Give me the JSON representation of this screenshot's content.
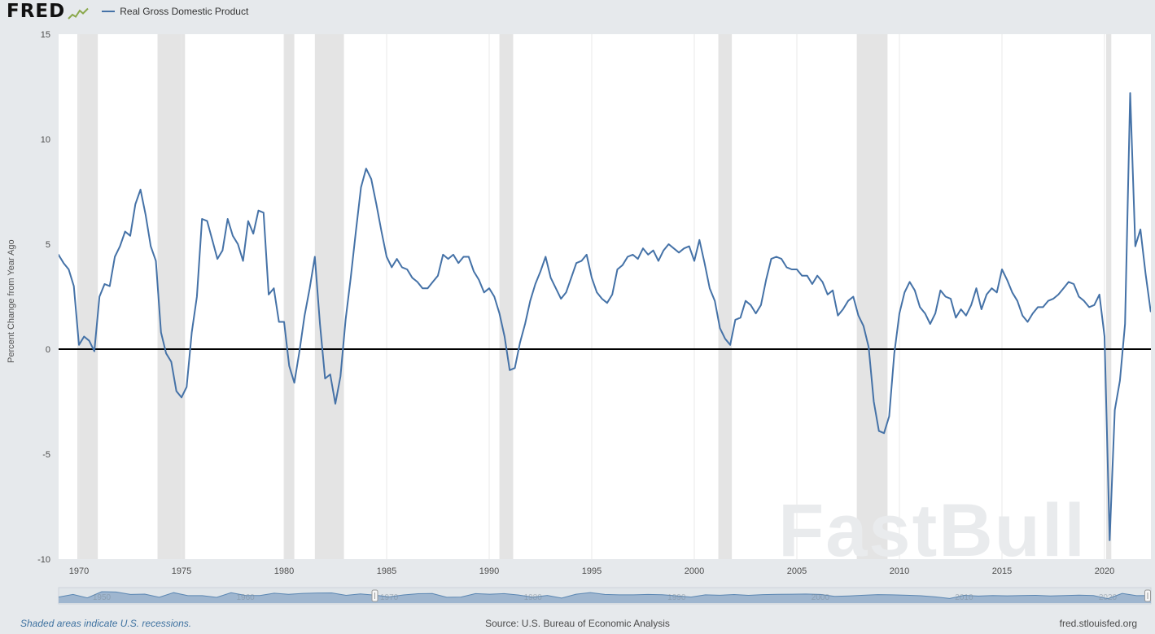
{
  "header": {
    "logo": "FRED",
    "legend": {
      "series_label": "Real Gross Domestic Product",
      "series_color": "#4572a7"
    }
  },
  "chart_data": {
    "type": "line",
    "title": "Real Gross Domestic Product",
    "ylabel": "Percent Change from Year Ago",
    "ylim": [
      -10,
      15
    ],
    "yticks": [
      15,
      10,
      5,
      0,
      -5,
      -10
    ],
    "xticks": [
      1970,
      1975,
      1980,
      1985,
      1990,
      1995,
      2000,
      2005,
      2010,
      2015,
      2020
    ],
    "x_start": 1969.0,
    "x_step": 0.25,
    "line_color": "#4572a7",
    "zero_line_color": "#000000",
    "recession_band_color": "#e4e4e4",
    "grid_color": "#e9e9e9",
    "recession_bands": [
      [
        1969.92,
        1970.92
      ],
      [
        1973.83,
        1975.17
      ],
      [
        1980.0,
        1980.5
      ],
      [
        1981.5,
        1982.92
      ],
      [
        1990.5,
        1991.17
      ],
      [
        2001.17,
        2001.83
      ],
      [
        2007.92,
        2009.42
      ],
      [
        2020.08,
        2020.33
      ]
    ],
    "values": [
      4.5,
      4.1,
      3.8,
      3.0,
      0.2,
      0.6,
      0.4,
      -0.1,
      2.5,
      3.1,
      3.0,
      4.4,
      4.9,
      5.6,
      5.4,
      6.9,
      7.6,
      6.4,
      4.9,
      4.2,
      0.8,
      -0.2,
      -0.6,
      -2.0,
      -2.3,
      -1.8,
      0.8,
      2.5,
      6.2,
      6.1,
      5.2,
      4.3,
      4.7,
      6.2,
      5.4,
      5.0,
      4.2,
      6.1,
      5.5,
      6.6,
      6.5,
      2.6,
      2.9,
      1.3,
      1.3,
      -0.8,
      -1.6,
      -0.1,
      1.6,
      2.9,
      4.4,
      1.2,
      -1.4,
      -1.2,
      -2.6,
      -1.3,
      1.4,
      3.4,
      5.6,
      7.7,
      8.6,
      8.1,
      6.9,
      5.6,
      4.4,
      3.9,
      4.3,
      3.9,
      3.8,
      3.4,
      3.2,
      2.9,
      2.9,
      3.2,
      3.5,
      4.5,
      4.3,
      4.5,
      4.1,
      4.4,
      4.4,
      3.7,
      3.3,
      2.7,
      2.9,
      2.5,
      1.7,
      0.6,
      -1.0,
      -0.9,
      0.3,
      1.2,
      2.3,
      3.1,
      3.7,
      4.4,
      3.4,
      2.9,
      2.4,
      2.7,
      3.4,
      4.1,
      4.2,
      4.5,
      3.4,
      2.7,
      2.4,
      2.2,
      2.6,
      3.8,
      4.0,
      4.4,
      4.5,
      4.3,
      4.8,
      4.5,
      4.7,
      4.2,
      4.7,
      5.0,
      4.8,
      4.6,
      4.8,
      4.9,
      4.2,
      5.2,
      4.1,
      2.9,
      2.3,
      1.0,
      0.5,
      0.2,
      1.4,
      1.5,
      2.3,
      2.1,
      1.7,
      2.1,
      3.3,
      4.3,
      4.4,
      4.3,
      3.9,
      3.8,
      3.8,
      3.5,
      3.5,
      3.1,
      3.5,
      3.2,
      2.6,
      2.8,
      1.6,
      1.9,
      2.3,
      2.5,
      1.6,
      1.1,
      0.1,
      -2.5,
      -3.9,
      -4.0,
      -3.2,
      -0.2,
      1.7,
      2.7,
      3.2,
      2.8,
      2.0,
      1.7,
      1.2,
      1.7,
      2.8,
      2.5,
      2.4,
      1.5,
      1.9,
      1.6,
      2.1,
      2.9,
      1.9,
      2.6,
      2.9,
      2.7,
      3.8,
      3.3,
      2.7,
      2.3,
      1.6,
      1.3,
      1.7,
      2.0,
      2.0,
      2.3,
      2.4,
      2.6,
      2.9,
      3.2,
      3.1,
      2.5,
      2.3,
      2.0,
      2.1,
      2.6,
      0.6,
      -9.1,
      -2.9,
      -1.5,
      1.2,
      12.2,
      4.9,
      5.7,
      3.6,
      1.8
    ]
  },
  "navigator": {
    "x_start": 1947,
    "x_step": 1,
    "x_end": 2023,
    "selection_start": 1969,
    "selection_end": 2023,
    "area_color": "#9fb6cf",
    "line_color": "#5b87b3",
    "decades": [
      "1950",
      "1960",
      "1970",
      "1980",
      "1990",
      "2000",
      "2010",
      "2020"
    ],
    "values": [
      -0.2,
      4.1,
      -1.5,
      8.7,
      8.1,
      4.1,
      4.7,
      -0.6,
      7.1,
      2.1,
      2.1,
      -0.7,
      6.9,
      2.6,
      2.3,
      6.1,
      4.4,
      5.8,
      6.5,
      6.6,
      2.7,
      4.9,
      3.1,
      0.2,
      3.3,
      5.3,
      5.6,
      -0.5,
      -0.2,
      5.4,
      4.6,
      5.5,
      3.2,
      -0.3,
      2.5,
      -1.8,
      4.6,
      7.2,
      4.2,
      3.5,
      3.5,
      4.2,
      3.7,
      1.9,
      -0.1,
      3.5,
      2.8,
      4.0,
      2.7,
      3.8,
      4.4,
      4.5,
      4.8,
      4.1,
      1.0,
      1.7,
      2.8,
      3.9,
      3.5,
      2.8,
      2.0,
      0.1,
      -2.6,
      2.7,
      1.5,
      2.3,
      1.8,
      2.3,
      2.7,
      1.7,
      2.3,
      2.9,
      2.3,
      -2.8,
      5.9,
      2.1,
      2.4
    ]
  },
  "watermark": "FastBull",
  "footer": {
    "recession_note": "Shaded areas indicate U.S. recessions.",
    "source": "Source: U.S. Bureau of Economic Analysis",
    "site": "fred.stlouisfed.org"
  }
}
